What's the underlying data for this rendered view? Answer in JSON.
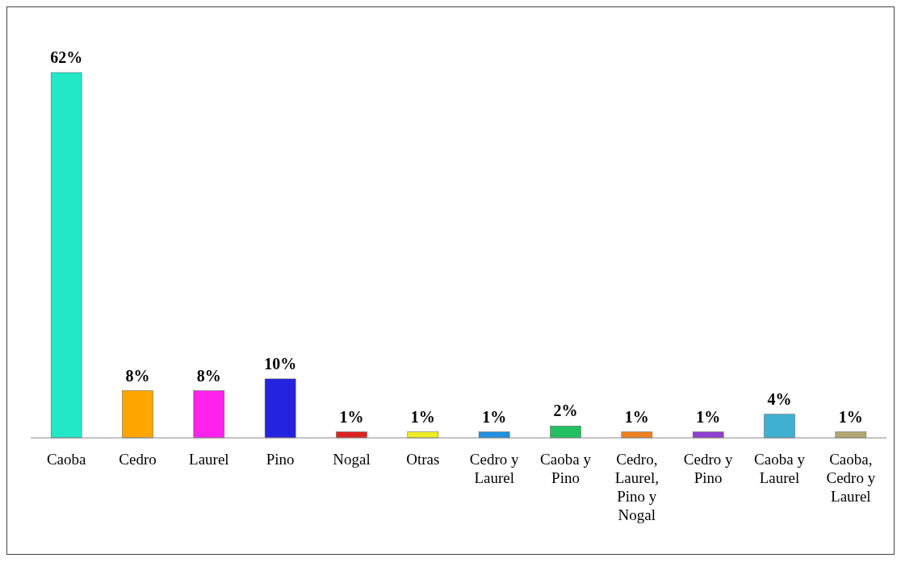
{
  "chart_data": {
    "type": "bar",
    "categories": [
      "Caoba",
      "Cedro",
      "Laurel",
      "Pino",
      "Nogal",
      "Otras",
      "Cedro y Laurel",
      "Caoba y Pino",
      "Cedro, Laurel, Pino y Nogal",
      "Cedro y Pino",
      "Caoba y Laurel",
      "Caoba, Cedro y Laurel"
    ],
    "values": [
      62,
      8,
      8,
      10,
      1,
      1,
      1,
      2,
      1,
      1,
      4,
      1
    ],
    "value_labels": [
      "62%",
      "8%",
      "8%",
      "10%",
      "1%",
      "1%",
      "1%",
      "2%",
      "1%",
      "1%",
      "4%",
      "1%"
    ],
    "colors": [
      "#22e8c8",
      "#ffa500",
      "#ff22ee",
      "#2323e0",
      "#dd2222",
      "#eeee22",
      "#2090e0",
      "#22c060",
      "#f08020",
      "#9040d0",
      "#40b0d0",
      "#b0a870"
    ]
  }
}
